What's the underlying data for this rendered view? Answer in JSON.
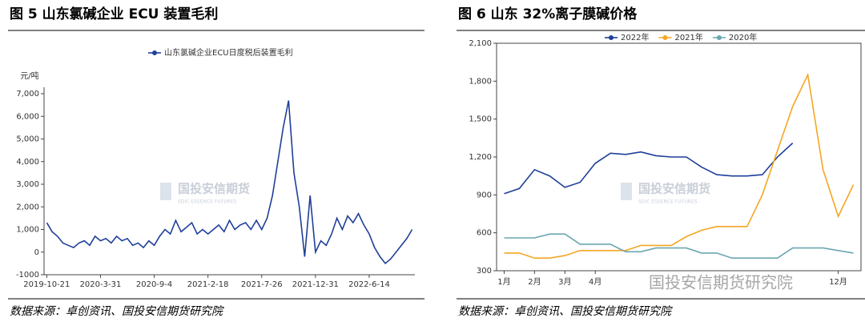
{
  "chart_data": [
    {
      "type": "line",
      "title": "图 5 山东氯碱企业 ECU 装置毛利",
      "y_unit": "元/吨",
      "source": "数据来源：卓创资讯、国投安信期货研究院",
      "categories": [
        "2019-10-21",
        null,
        null,
        null,
        null,
        null,
        null,
        null,
        null,
        null,
        "2020-3-31",
        null,
        null,
        null,
        null,
        null,
        null,
        null,
        null,
        null,
        "2020-9-4",
        null,
        null,
        null,
        null,
        null,
        null,
        null,
        null,
        null,
        "2021-2-18",
        null,
        null,
        null,
        null,
        null,
        null,
        null,
        null,
        null,
        "2021-7-26",
        null,
        null,
        null,
        null,
        null,
        null,
        null,
        null,
        null,
        "2021-12-31",
        null,
        null,
        null,
        null,
        null,
        null,
        null,
        null,
        null,
        "2022-6-14",
        null,
        null,
        null,
        null,
        null,
        null,
        null,
        null
      ],
      "series": [
        {
          "name": "山东氯碱企业ECU日度税后装置毛利",
          "color": "#1f3f99",
          "values": [
            1300,
            900,
            700,
            400,
            300,
            200,
            400,
            500,
            300,
            700,
            500,
            600,
            400,
            700,
            500,
            600,
            300,
            400,
            200,
            500,
            300,
            700,
            1000,
            800,
            1400,
            900,
            1100,
            1300,
            800,
            1000,
            800,
            1000,
            1200,
            900,
            1400,
            1000,
            1200,
            1300,
            1000,
            1400,
            1000,
            1500,
            2500,
            4000,
            5500,
            6700,
            3500,
            2000,
            -200,
            2500,
            0,
            500,
            300,
            800,
            1500,
            1000,
            1600,
            1300,
            1700,
            1200,
            800,
            200,
            -200,
            -500,
            -300,
            0,
            300,
            600,
            1000
          ]
        }
      ],
      "ylim": [
        -1000,
        7000
      ],
      "yticks": [
        -1000,
        0,
        {
          "value": 1000,
          "label": "1,000"
        },
        {
          "value": 2000,
          "label": "2,000"
        },
        {
          "value": 3000,
          "label": "3,000"
        },
        {
          "value": 4000,
          "label": "4,000"
        },
        {
          "value": 5000,
          "label": "5,000"
        },
        {
          "value": 6000,
          "label": "6,000"
        },
        {
          "value": 7000,
          "label": "7,000"
        }
      ],
      "grid": false,
      "legend": "top"
    },
    {
      "type": "line",
      "title": "图 6 山东 32%离子膜碱价格",
      "source": "数据来源：卓创资讯、国投安信期货研究院",
      "categories": [
        "1月",
        null,
        "2月",
        null,
        "3月",
        null,
        "4月",
        null,
        null,
        null,
        null,
        null,
        null,
        null,
        null,
        null,
        null,
        null,
        null,
        null,
        null,
        null,
        "12月",
        null
      ],
      "series": [
        {
          "name": "2022年",
          "color": "#1f3f99",
          "values": [
            910,
            950,
            1100,
            1050,
            960,
            1000,
            1150,
            1230,
            1220,
            1240,
            1210,
            1200,
            1200,
            1120,
            1060,
            1050,
            1050,
            1060,
            1200,
            1310,
            null,
            null,
            null,
            null
          ]
        },
        {
          "name": "2021年",
          "color": "#f5a623",
          "values": [
            440,
            440,
            400,
            400,
            420,
            460,
            460,
            460,
            460,
            500,
            500,
            500,
            570,
            620,
            650,
            650,
            650,
            900,
            1250,
            1600,
            1850,
            1100,
            730,
            980
          ]
        },
        {
          "name": "2020年",
          "color": "#6aa6b0",
          "values": [
            560,
            560,
            560,
            590,
            590,
            510,
            510,
            510,
            450,
            450,
            480,
            480,
            480,
            440,
            440,
            400,
            400,
            400,
            400,
            480,
            480,
            480,
            460,
            440
          ]
        }
      ],
      "ylim": [
        300,
        2100
      ],
      "yticks": [
        300,
        600,
        900,
        {
          "value": 1200,
          "label": "1,200"
        },
        {
          "value": 1500,
          "label": "1,500"
        },
        {
          "value": 1800,
          "label": "1,800"
        },
        {
          "value": 2100,
          "label": "2,100"
        }
      ],
      "grid": false,
      "legend": "top"
    }
  ],
  "watermarks": [
    "国投安信期货",
    "SDIC ESSENCE FUTURES"
  ],
  "wechat_watermark": "国投安信期货研究院"
}
